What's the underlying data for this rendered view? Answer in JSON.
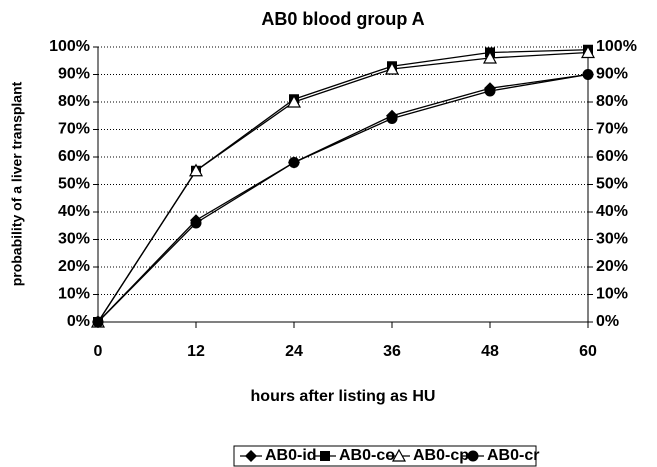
{
  "chart_data": {
    "type": "line",
    "title": "AB0 blood group A",
    "xlabel": "hours after listing as HU",
    "ylabel": "probability of a liver transplant",
    "x": [
      0,
      12,
      24,
      36,
      48,
      60
    ],
    "xlim": [
      0,
      60
    ],
    "xticks": [
      0,
      12,
      24,
      36,
      48,
      60
    ],
    "ylim": [
      0,
      100
    ],
    "yticks": [
      {
        "value": 0,
        "label": "0%"
      },
      {
        "value": 10,
        "label": "10%"
      },
      {
        "value": 20,
        "label": "20%"
      },
      {
        "value": 30,
        "label": "30%"
      },
      {
        "value": 40,
        "label": "40%"
      },
      {
        "value": 50,
        "label": "50%"
      },
      {
        "value": 60,
        "label": "60%"
      },
      {
        "value": 70,
        "label": "70%"
      },
      {
        "value": 80,
        "label": "80%"
      },
      {
        "value": 90,
        "label": "90%"
      },
      {
        "value": 100,
        "label": "100%"
      }
    ],
    "grid": true,
    "legend": "bottom",
    "series": [
      {
        "name": "AB0-id",
        "color": "#000000",
        "marker": "diamond",
        "values": [
          0,
          37,
          58,
          75,
          85,
          90
        ]
      },
      {
        "name": "AB0-co",
        "color": "#000000",
        "marker": "square",
        "values": [
          0,
          55,
          81,
          93,
          98,
          99
        ]
      },
      {
        "name": "AB0-cp",
        "color": "#000000",
        "marker": "triangle",
        "values": [
          0,
          55,
          80,
          92,
          96,
          98
        ]
      },
      {
        "name": "AB0-cr",
        "color": "#000000",
        "marker": "circle",
        "values": [
          0,
          36,
          58,
          74,
          84,
          90
        ]
      }
    ]
  }
}
